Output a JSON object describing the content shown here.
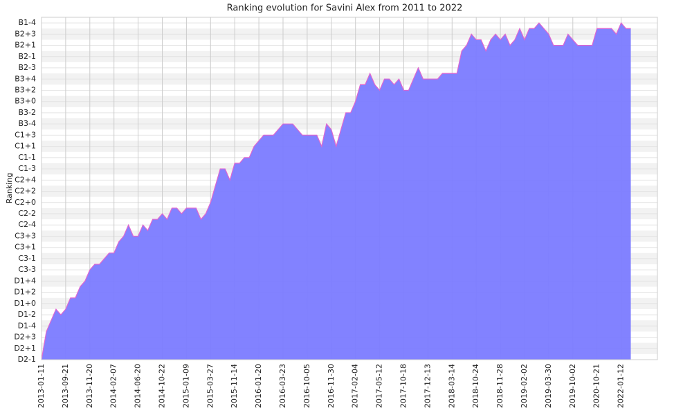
{
  "chart_data": {
    "type": "area",
    "title": "Ranking evolution for Savini Alex from 2011 to 2022",
    "ylabel": "Ranking",
    "categories": [
      "2013-01-11",
      null,
      null,
      null,
      null,
      "2013-09-21",
      null,
      null,
      null,
      null,
      "2013-11-20",
      null,
      null,
      null,
      null,
      "2014-02-07",
      null,
      null,
      null,
      null,
      "2014-06-20",
      null,
      null,
      null,
      null,
      "2014-10-22",
      null,
      null,
      null,
      null,
      "2015-01-09",
      null,
      null,
      null,
      null,
      "2015-03-27",
      null,
      null,
      null,
      null,
      "2015-11-14",
      null,
      null,
      null,
      null,
      "2016-01-20",
      null,
      null,
      null,
      null,
      "2016-03-23",
      null,
      null,
      null,
      null,
      "2016-10-05",
      null,
      null,
      null,
      null,
      "2016-11-30",
      null,
      null,
      null,
      null,
      "2017-02-04",
      null,
      null,
      null,
      null,
      "2017-05-12",
      null,
      null,
      null,
      null,
      "2017-10-18",
      null,
      null,
      null,
      null,
      "2017-12-13",
      null,
      null,
      null,
      null,
      "2018-03-14",
      null,
      null,
      null,
      null,
      "2018-10-24",
      null,
      null,
      null,
      null,
      "2018-11-28",
      null,
      null,
      null,
      null,
      "2019-02-02",
      null,
      null,
      null,
      null,
      "2019-03-30",
      null,
      null,
      null,
      null,
      "2019-10-02",
      null,
      null,
      null,
      null,
      "2020-10-21",
      null,
      null,
      null,
      null,
      "2022-01-12",
      null,
      null
    ],
    "values": [
      0,
      2.5,
      3.5,
      4.5,
      4,
      4.5,
      5.5,
      5.5,
      6.5,
      7,
      8,
      8.5,
      8.5,
      9,
      9.5,
      9.5,
      10.5,
      11,
      12,
      11,
      11,
      12,
      11.5,
      12.5,
      12.5,
      13,
      12.5,
      13.5,
      13.5,
      13,
      13.5,
      13.5,
      13.5,
      12.5,
      13,
      14,
      15.5,
      17,
      17,
      16,
      17.5,
      17.5,
      18,
      18,
      19,
      19.5,
      20,
      20,
      20,
      20.5,
      21,
      21,
      21,
      20.5,
      20,
      20,
      20,
      20,
      19,
      21,
      20.5,
      19,
      20.5,
      22,
      22,
      23,
      24.5,
      24.5,
      25.5,
      24.5,
      24,
      25,
      25,
      24.5,
      25,
      24,
      24,
      25,
      26,
      25,
      25,
      25,
      25,
      25.5,
      25.5,
      25.5,
      25.5,
      27.5,
      28,
      29,
      28.5,
      28.5,
      27.5,
      28.5,
      29,
      28.5,
      29,
      28,
      28.5,
      29.5,
      28.5,
      29.5,
      29.5,
      30,
      29.5,
      29,
      28,
      28,
      28,
      29,
      28.5,
      28,
      28,
      28,
      28,
      29.5,
      29.5,
      29.5,
      29.5,
      29,
      30,
      29.5,
      29.5
    ],
    "color": "#7b7bff",
    "line_color": "#e066d0",
    "ylim": [
      0,
      30.5
    ],
    "yticks": [
      {
        "value": 0,
        "label": "D2-1"
      },
      {
        "value": 1,
        "label": "D2+1"
      },
      {
        "value": 2,
        "label": "D2+3"
      },
      {
        "value": 3,
        "label": "D1-4"
      },
      {
        "value": 4,
        "label": "D1-2"
      },
      {
        "value": 5,
        "label": "D1+0"
      },
      {
        "value": 6,
        "label": "D1+2"
      },
      {
        "value": 7,
        "label": "D1+4"
      },
      {
        "value": 8,
        "label": "C3-3"
      },
      {
        "value": 9,
        "label": "C3-1"
      },
      {
        "value": 10,
        "label": "C3+1"
      },
      {
        "value": 11,
        "label": "C3+3"
      },
      {
        "value": 12,
        "label": "C2-4"
      },
      {
        "value": 13,
        "label": "C2-2"
      },
      {
        "value": 14,
        "label": "C2+0"
      },
      {
        "value": 15,
        "label": "C2+2"
      },
      {
        "value": 16,
        "label": "C2+4"
      },
      {
        "value": 17,
        "label": "C1-3"
      },
      {
        "value": 18,
        "label": "C1-1"
      },
      {
        "value": 19,
        "label": "C1+1"
      },
      {
        "value": 20,
        "label": "C1+3"
      },
      {
        "value": 21,
        "label": "B3-4"
      },
      {
        "value": 22,
        "label": "B3-2"
      },
      {
        "value": 23,
        "label": "B3+0"
      },
      {
        "value": 24,
        "label": "B3+2"
      },
      {
        "value": 25,
        "label": "B3+4"
      },
      {
        "value": 26,
        "label": "B2-3"
      },
      {
        "value": 27,
        "label": "B2-1"
      },
      {
        "value": 28,
        "label": "B2+1"
      },
      {
        "value": 29,
        "label": "B2+3"
      },
      {
        "value": 30,
        "label": "B1-4"
      }
    ],
    "grid": true
  }
}
